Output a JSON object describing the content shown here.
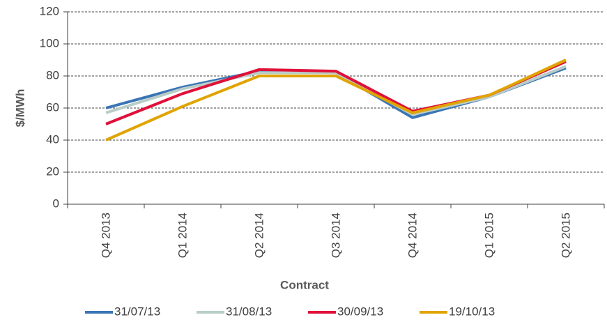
{
  "chart_data": {
    "type": "line",
    "y_label": "$/MWh",
    "x_label": "Contract",
    "categories": [
      "Q4 2013",
      "Q1 2014",
      "Q2 2014",
      "Q3 2014",
      "Q4 2014",
      "Q1 2015",
      "Q2 2015"
    ],
    "series": [
      {
        "name": "31/07/13",
        "color": "#3a75b5",
        "values": [
          60,
          73,
          83,
          82,
          54,
          67,
          85
        ]
      },
      {
        "name": "31/08/13",
        "color": "#b9cdc8",
        "values": [
          57,
          72,
          82,
          82,
          56,
          67,
          86
        ]
      },
      {
        "name": "30/09/13",
        "color": "#e0103a",
        "values": [
          50,
          69,
          84,
          83,
          58,
          68,
          89
        ]
      },
      {
        "name": "19/10/13",
        "color": "#e0a400",
        "values": [
          40,
          61,
          80,
          80,
          57,
          68,
          90
        ]
      }
    ],
    "ylim": [
      0,
      120
    ],
    "yticks": [
      0,
      20,
      40,
      60,
      80,
      100,
      120
    ],
    "grid": true,
    "legend": "bottom"
  }
}
